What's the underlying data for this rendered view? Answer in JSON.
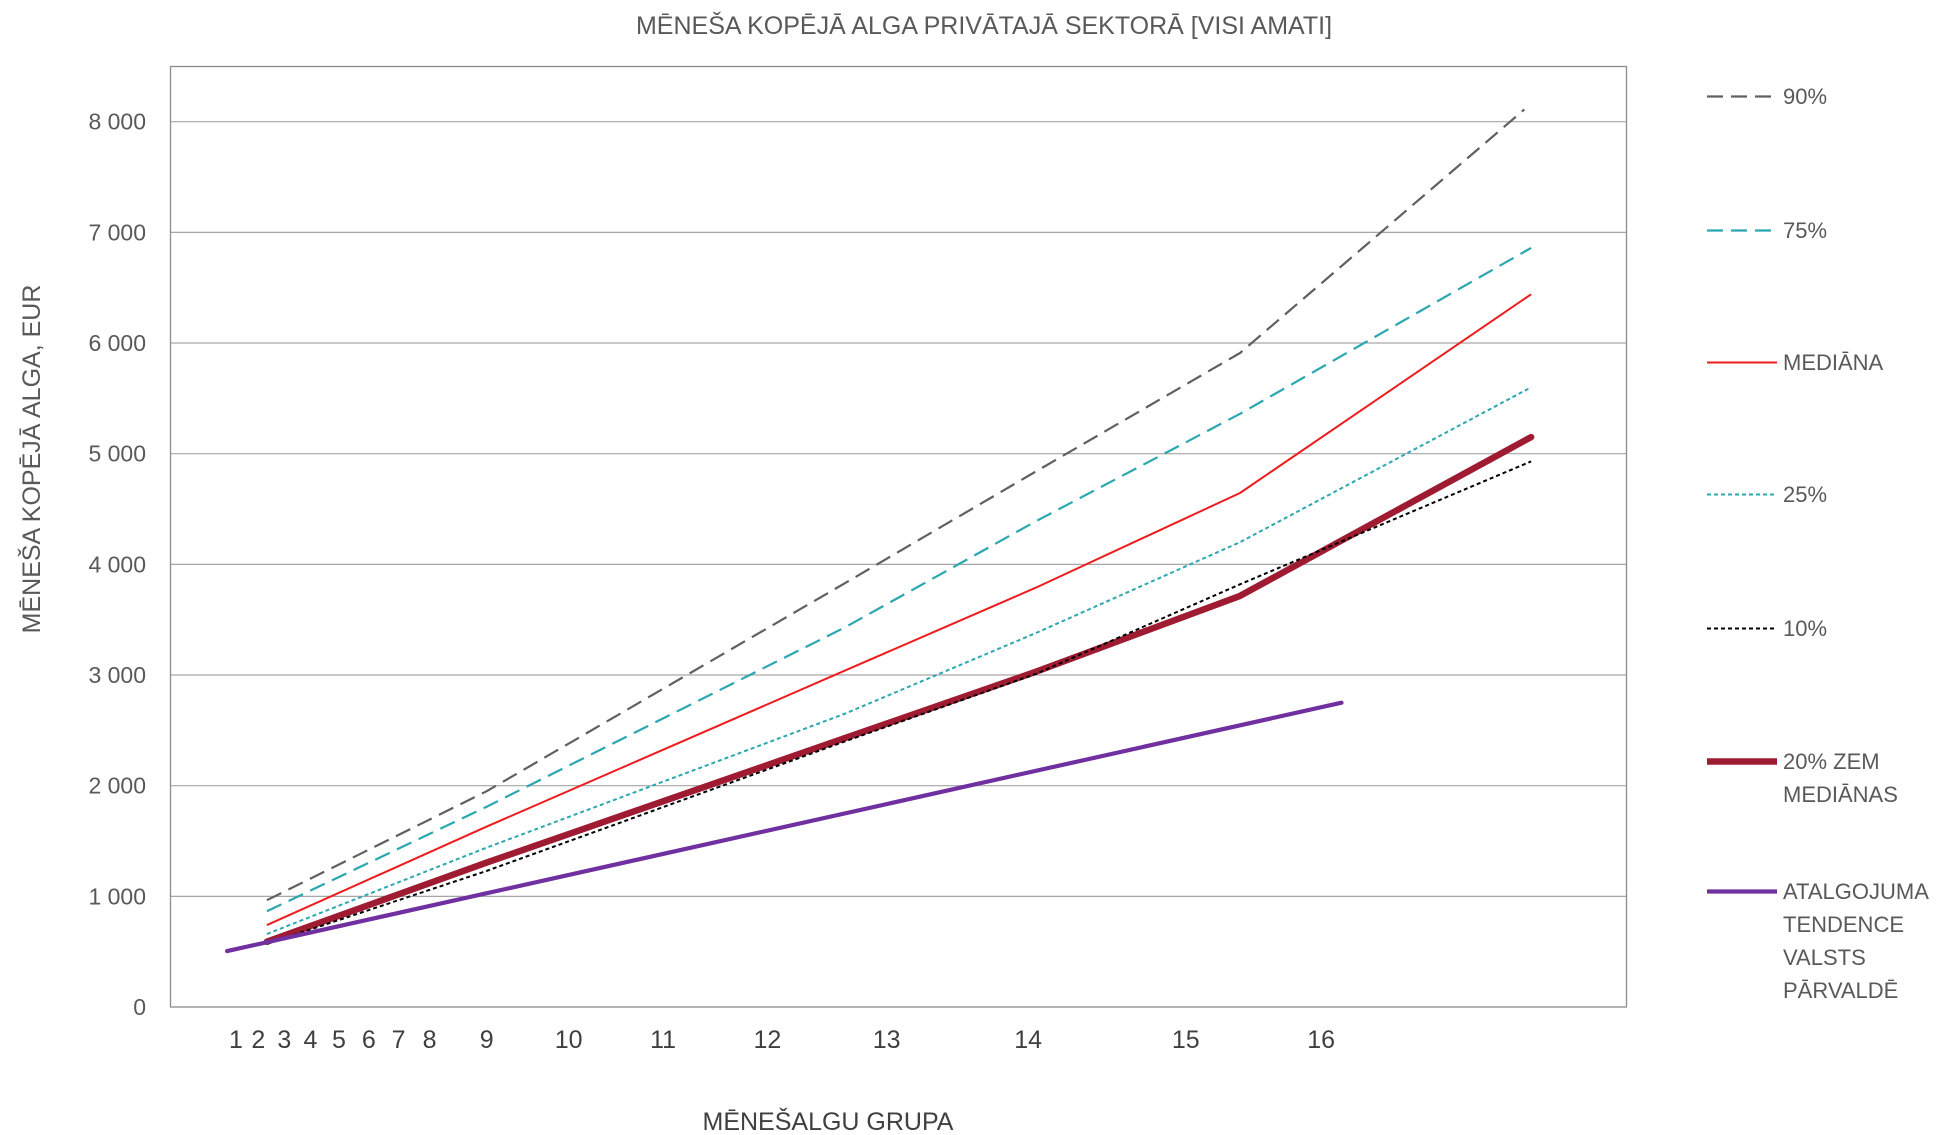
{
  "chart_data": {
    "type": "line",
    "title": "MĒNEŠA KOPĒJĀ ALGA PRIVĀTAJĀ SEKTORĀ [VISI AMATI]",
    "xlabel": "MĒNEŠALGU GRUPA",
    "ylabel": "MĒNEŠA KOPĒJĀ ALGA, EUR",
    "x_ticks": [
      1,
      2,
      3,
      4,
      5,
      6,
      7,
      8,
      9,
      10,
      11,
      12,
      13,
      14,
      15,
      16
    ],
    "x_tick_labels": [
      "1",
      "2",
      "3",
      "4",
      "5",
      "6",
      "7",
      "8",
      "9",
      "10",
      "11",
      "12",
      "13",
      "14",
      "15",
      "16"
    ],
    "y_ticks": [
      0,
      1000,
      2000,
      3000,
      4000,
      5000,
      6000,
      7000,
      8000
    ],
    "y_tick_labels": [
      "0",
      "1 000",
      "2 000",
      "3 000",
      "4 000",
      "5 000",
      "6 000",
      "7 000",
      "8 000"
    ],
    "ylim": [
      0,
      8500
    ],
    "grid": "horizontal",
    "legend": "right",
    "series": [
      {
        "name": "90%",
        "color": "#606060",
        "line": "dashed",
        "x": [
          2.33,
          9,
          12.65,
          14.05,
          15.4,
          17.5
        ],
        "y": [
          965,
          1950,
          3830,
          4840,
          5910,
          8110
        ]
      },
      {
        "name": "75%",
        "color": "#2ba7b0",
        "line": "dashed",
        "x": [
          2.33,
          9,
          12.65,
          14.05,
          15.4,
          17.55
        ],
        "y": [
          865,
          1810,
          3430,
          4390,
          5360,
          6860
        ]
      },
      {
        "name": "MEDIĀNA",
        "color": "#ee1c1c",
        "line": "solid",
        "x": [
          2.33,
          9,
          12.65,
          14.05,
          15.4,
          17.55
        ],
        "y": [
          740,
          1630,
          3040,
          3790,
          4645,
          6440
        ]
      },
      {
        "name": "25%",
        "color": "#2ba7b0",
        "line": "dotted",
        "x": [
          2.33,
          9,
          12.65,
          14.05,
          15.4,
          17.55
        ],
        "y": [
          660,
          1440,
          2650,
          3380,
          4200,
          5600
        ]
      },
      {
        "name": "10%",
        "color": "#000000",
        "line": "dotted",
        "x": [
          2.33,
          9,
          12.65,
          14.05,
          15.4,
          17.55
        ],
        "y": [
          570,
          1230,
          2400,
          3010,
          3820,
          4930
        ]
      },
      {
        "name": "20% ZEM MEDIĀNAS",
        "color": "#9e1b32",
        "line": "solid",
        "x": [
          2.33,
          9,
          12.65,
          14.05,
          15.4,
          17.55
        ],
        "y": [
          590,
          1305,
          2430,
          3030,
          3715,
          5150
        ]
      },
      {
        "name": "ATALGOJUMA TENDENCE VALSTS PĀRVALDĒ",
        "color": "#7030a0",
        "line": "solid",
        "x": [
          0.6,
          16.15
        ],
        "y": [
          505,
          2750
        ]
      }
    ]
  }
}
